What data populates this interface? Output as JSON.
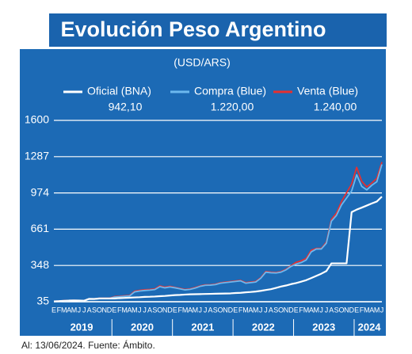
{
  "chart_data": {
    "type": "line",
    "title": "Evolución Peso Argentino",
    "subtitle": "(USD/ARS)",
    "footer": "Al: 13/06/2024. Fuente: Ámbito.",
    "categories": [
      "E",
      "F",
      "M",
      "A",
      "M",
      "J",
      "J",
      "A",
      "S",
      "O",
      "N",
      "D",
      "E",
      "F",
      "M",
      "A",
      "M",
      "J",
      "J",
      "A",
      "S",
      "O",
      "N",
      "D",
      "E",
      "F",
      "M",
      "A",
      "M",
      "J",
      "J",
      "A",
      "S",
      "O",
      "N",
      "D",
      "E",
      "F",
      "M",
      "A",
      "M",
      "J",
      "J",
      "A",
      "S",
      "O",
      "N",
      "D",
      "E",
      "F",
      "M",
      "A",
      "M",
      "J",
      "J",
      "A",
      "S",
      "O",
      "N",
      "D",
      "E",
      "F",
      "M",
      "A",
      "M",
      "J"
    ],
    "year_labels": [
      "2019",
      "2020",
      "2021",
      "2022",
      "2023",
      "2024"
    ],
    "ylim": [
      35,
      1600
    ],
    "yticks": [
      35,
      348,
      661,
      974,
      1287,
      1600
    ],
    "grid": true,
    "series": [
      {
        "name": "Oficial (BNA)",
        "current_label": "942,10",
        "color": "#ffffff",
        "values": [
          38,
          40,
          43,
          45,
          46,
          45,
          44,
          60,
          59,
          63,
          63,
          63,
          63,
          66,
          68,
          70,
          72,
          74,
          77,
          78,
          80,
          83,
          85,
          89,
          92,
          94,
          97,
          99,
          100,
          101,
          102,
          103,
          104,
          105,
          106,
          107,
          110,
          112,
          116,
          119,
          123,
          129,
          136,
          143,
          154,
          166,
          175,
          187,
          196,
          208,
          221,
          239,
          258,
          277,
          300,
          366,
          366,
          366,
          366,
          808,
          830,
          847,
          865,
          883,
          900,
          942.1
        ]
      },
      {
        "name": "Compra (Blue)",
        "current_label": "1.220,00",
        "color": "#6cb8ee",
        "values": [
          37,
          39,
          42,
          44,
          45,
          44,
          43,
          57,
          57,
          62,
          62,
          62,
          75,
          78,
          82,
          85,
          120,
          127,
          132,
          135,
          140,
          165,
          155,
          162,
          155,
          146,
          137,
          142,
          153,
          168,
          177,
          178,
          183,
          195,
          200,
          205,
          210,
          215,
          195,
          200,
          205,
          238,
          290,
          285,
          283,
          290,
          310,
          340,
          360,
          373,
          395,
          465,
          490,
          490,
          540,
          730,
          780,
          870,
          930,
          990,
          1130,
          1030,
          1000,
          1040,
          1070,
          1220
        ]
      },
      {
        "name": "Venta (Blue)",
        "current_label": "1.240,00",
        "color": "#e53030",
        "values": [
          39,
          41,
          44,
          46,
          47,
          46,
          45,
          60,
          60,
          65,
          65,
          65,
          79,
          82,
          86,
          89,
          126,
          133,
          138,
          141,
          146,
          172,
          161,
          168,
          159,
          150,
          141,
          146,
          158,
          172,
          181,
          182,
          187,
          199,
          204,
          209,
          214,
          219,
          200,
          205,
          210,
          243,
          296,
          290,
          288,
          295,
          315,
          346,
          375,
          388,
          410,
          480,
          495,
          495,
          550,
          745,
          800,
          900,
          975,
          1050,
          1195,
          1075,
          1025,
          1060,
          1100,
          1240
        ]
      }
    ]
  }
}
